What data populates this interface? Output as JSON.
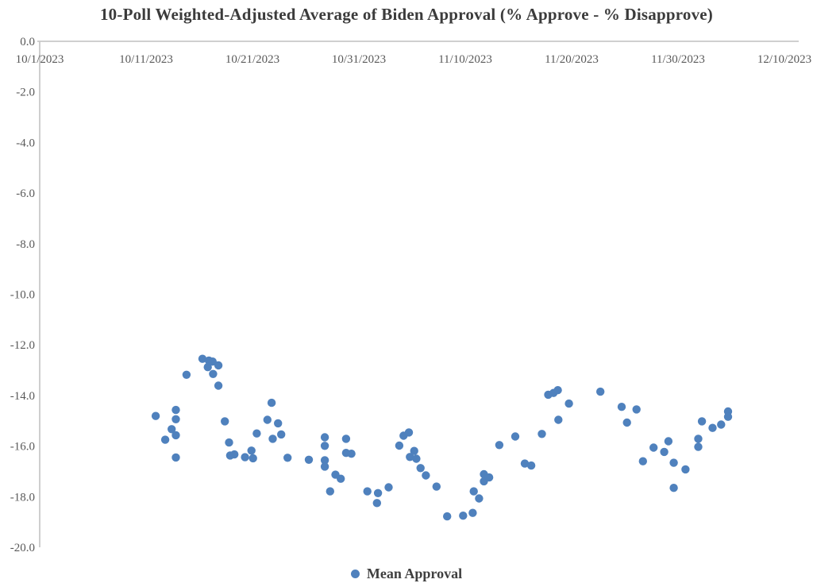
{
  "chart_data": {
    "type": "scatter",
    "title": "10-Poll Weighted-Adjusted Average of Biden Approval (% Approve - % Disapprove)",
    "xlabel": "",
    "ylabel": "",
    "x_axis": {
      "unit": "days since 10/1/2023",
      "tick_labels": [
        "10/1/2023",
        "10/11/2023",
        "10/21/2023",
        "10/31/2023",
        "11/10/2023",
        "11/20/2023",
        "11/30/2023",
        "12/10/2023"
      ],
      "tick_day_offsets": [
        0,
        10,
        20,
        30,
        40,
        50,
        60,
        70
      ],
      "min_day": 0,
      "max_day": 70
    },
    "y_axis": {
      "tick_labels": [
        "0.0",
        "-2.0",
        "-4.0",
        "-6.0",
        "-8.0",
        "-10.0",
        "-12.0",
        "-14.0",
        "-16.0",
        "-18.0",
        "-20.0"
      ],
      "max": 0.0,
      "min": -20.0,
      "tick_step": -2.0
    },
    "grid": "off",
    "legend": {
      "label": "Mean Approval",
      "position": "bottom-center"
    },
    "series": [
      {
        "name": "Mean Approval",
        "color": "#4F81BD",
        "marker": "circle",
        "points_format": "[day_offset_from_10/1/2023, approve_minus_disapprove]",
        "points": [
          [
            10.9,
            -14.81
          ],
          [
            11.8,
            -15.75
          ],
          [
            12.4,
            -15.33
          ],
          [
            12.8,
            -14.57
          ],
          [
            12.8,
            -14.94
          ],
          [
            12.8,
            -15.57
          ],
          [
            12.8,
            -16.45
          ],
          [
            13.8,
            -13.18
          ],
          [
            15.3,
            -12.55
          ],
          [
            15.8,
            -12.88
          ],
          [
            15.9,
            -12.62
          ],
          [
            16.25,
            -12.66
          ],
          [
            16.3,
            -13.15
          ],
          [
            16.8,
            -12.81
          ],
          [
            16.8,
            -13.61
          ],
          [
            17.4,
            -15.02
          ],
          [
            17.8,
            -15.86
          ],
          [
            17.9,
            -16.37
          ],
          [
            18.3,
            -16.33
          ],
          [
            19.3,
            -16.44
          ],
          [
            19.9,
            -16.18
          ],
          [
            20.05,
            -16.48
          ],
          [
            20.4,
            -15.5
          ],
          [
            21.4,
            -14.96
          ],
          [
            21.8,
            -14.29
          ],
          [
            21.9,
            -15.71
          ],
          [
            22.4,
            -15.1
          ],
          [
            22.7,
            -15.54
          ],
          [
            23.3,
            -16.46
          ],
          [
            25.3,
            -16.54
          ],
          [
            26.8,
            -15.65
          ],
          [
            26.8,
            -15.99
          ],
          [
            26.8,
            -16.56
          ],
          [
            26.8,
            -16.81
          ],
          [
            27.3,
            -17.79
          ],
          [
            27.8,
            -17.13
          ],
          [
            28.3,
            -17.29
          ],
          [
            28.8,
            -15.71
          ],
          [
            28.8,
            -16.27
          ],
          [
            29.3,
            -16.3
          ],
          [
            30.8,
            -17.79
          ],
          [
            31.7,
            -18.25
          ],
          [
            31.8,
            -17.86
          ],
          [
            32.8,
            -17.63
          ],
          [
            33.8,
            -15.98
          ],
          [
            34.2,
            -15.59
          ],
          [
            34.7,
            -15.46
          ],
          [
            34.8,
            -16.43
          ],
          [
            35.2,
            -16.19
          ],
          [
            35.4,
            -16.5
          ],
          [
            35.8,
            -16.87
          ],
          [
            36.3,
            -17.16
          ],
          [
            37.3,
            -17.6
          ],
          [
            38.3,
            -18.78
          ],
          [
            39.8,
            -18.75
          ],
          [
            40.7,
            -18.64
          ],
          [
            40.8,
            -17.79
          ],
          [
            41.3,
            -18.07
          ],
          [
            41.75,
            -17.11
          ],
          [
            41.75,
            -17.39
          ],
          [
            42.25,
            -17.24
          ],
          [
            43.2,
            -15.96
          ],
          [
            44.7,
            -15.62
          ],
          [
            45.6,
            -16.69
          ],
          [
            46.2,
            -16.77
          ],
          [
            47.2,
            -15.52
          ],
          [
            47.8,
            -13.97
          ],
          [
            48.3,
            -13.9
          ],
          [
            48.7,
            -13.79
          ],
          [
            48.75,
            -14.96
          ],
          [
            49.75,
            -14.32
          ],
          [
            52.7,
            -13.85
          ],
          [
            54.7,
            -14.45
          ],
          [
            55.2,
            -15.07
          ],
          [
            56.1,
            -14.55
          ],
          [
            56.7,
            -16.6
          ],
          [
            57.7,
            -16.06
          ],
          [
            58.7,
            -16.23
          ],
          [
            59.1,
            -15.81
          ],
          [
            59.6,
            -16.66
          ],
          [
            59.6,
            -17.65
          ],
          [
            60.7,
            -16.92
          ],
          [
            61.9,
            -15.71
          ],
          [
            61.9,
            -16.03
          ],
          [
            62.25,
            -15.02
          ],
          [
            63.25,
            -15.28
          ],
          [
            64.05,
            -15.15
          ],
          [
            64.7,
            -14.63
          ],
          [
            64.7,
            -14.84
          ]
        ]
      }
    ],
    "colors": {
      "marker": "#4F81BD",
      "axis_line": "#c8c8c8",
      "tick_label": "#595959",
      "title": "#3b3b3b",
      "background": "#ffffff"
    }
  }
}
